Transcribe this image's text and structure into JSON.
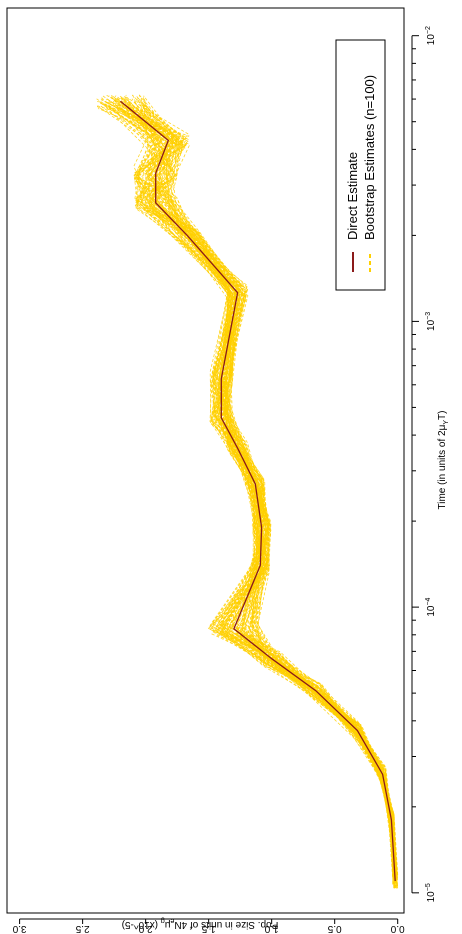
{
  "chart_data": {
    "type": "line",
    "orientation": "rotated-90-clockwise",
    "xlabel": "Time (in units of 2μ",
    "xlabel_sub": "Y",
    "xlabel_end": "T)",
    "ylabel": "Pop. Size in units of 4N",
    "ylabel_sub": "e",
    "ylabel_mu": "μ",
    "ylabel_sub2": "g",
    "ylabel_end": " (x10^-5)",
    "x_scale": "log",
    "xlim": [
      8.5e-06,
      0.0125
    ],
    "ylim": [
      -0.05,
      3.1
    ],
    "x_ticks": [
      {
        "value": 1e-05,
        "label": "10",
        "exp": "−5"
      },
      {
        "value": 0.0001,
        "label": "10",
        "exp": "−4"
      },
      {
        "value": 0.001,
        "label": "10",
        "exp": "−3"
      },
      {
        "value": 0.01,
        "label": "10",
        "exp": "−2"
      }
    ],
    "y_ticks": [
      {
        "value": 0.0,
        "label": "0.0"
      },
      {
        "value": 0.5,
        "label": "0.5"
      },
      {
        "value": 1.0,
        "label": "1.0"
      },
      {
        "value": 1.5,
        "label": "1.5"
      },
      {
        "value": 2.0,
        "label": "2.0"
      },
      {
        "value": 2.5,
        "label": "2.5"
      },
      {
        "value": 3.0,
        "label": "3.0"
      }
    ],
    "series": [
      {
        "name": "Direct Estimate",
        "color": "#8b1a1a",
        "style": "solid",
        "x": [
          1.1e-05,
          1.8e-05,
          2.6e-05,
          3.7e-05,
          5.1e-05,
          6.6e-05,
          8.4e-05,
          0.00014,
          0.00019,
          0.00027,
          0.00036,
          0.00046,
          0.00063,
          0.00126,
          0.002,
          0.0026,
          0.0033,
          0.0043,
          0.0059
        ],
        "y": [
          0.02,
          0.05,
          0.12,
          0.32,
          0.65,
          1.0,
          1.3,
          1.09,
          1.08,
          1.13,
          1.27,
          1.4,
          1.4,
          1.27,
          1.67,
          1.92,
          1.92,
          1.82,
          2.2
        ]
      },
      {
        "name": "Bootstrap Estimates (n=100)",
        "color": "#ffd000",
        "style": "dashed",
        "count": 100
      }
    ],
    "legend": {
      "position": "top-right",
      "entries": [
        {
          "label": "Direct Estimate",
          "color": "#8b1a1a",
          "style": "solid"
        },
        {
          "label": "Bootstrap Estimates (n=100)",
          "color": "#ffd000",
          "style": "dashed"
        }
      ]
    }
  }
}
